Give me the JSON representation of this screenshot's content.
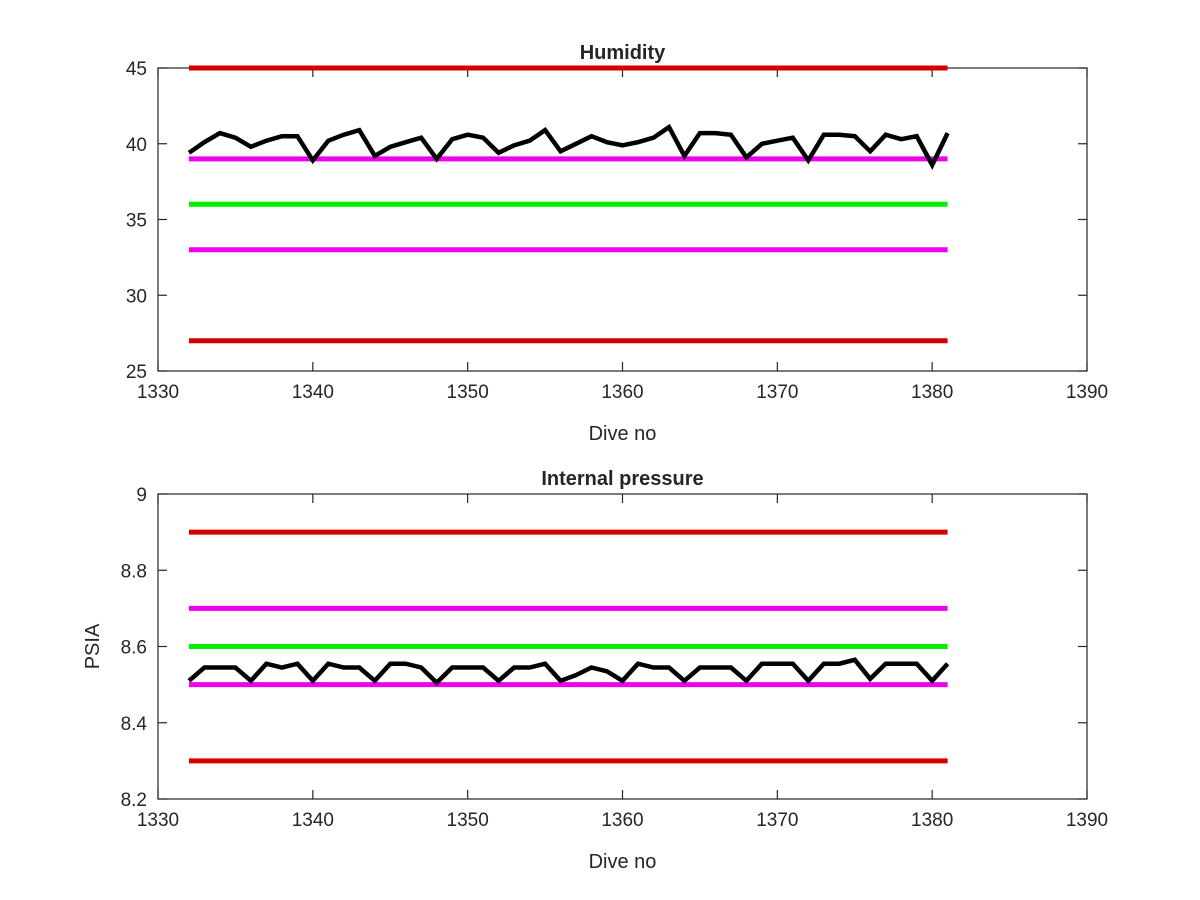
{
  "chart_data": [
    {
      "type": "line",
      "title": "Humidity",
      "xlabel": "Dive no",
      "ylabel": "",
      "xlim": [
        1330,
        1390
      ],
      "ylim": [
        25,
        45
      ],
      "xticks": [
        1330,
        1340,
        1350,
        1360,
        1370,
        1380,
        1390
      ],
      "yticks": [
        25,
        30,
        35,
        40,
        45
      ],
      "xtick_labels": [
        "1330",
        "1340",
        "1350",
        "1360",
        "1370",
        "1380",
        "1390"
      ],
      "ytick_labels": [
        "25",
        "30",
        "35",
        "40",
        "45"
      ],
      "grid": false,
      "legend": "none",
      "series": [
        {
          "color": "#d40000",
          "values_x": [
            1332,
            1381
          ],
          "values_y": [
            45,
            45
          ]
        },
        {
          "color": "#ee00ee",
          "values_x": [
            1332,
            1381
          ],
          "values_y": [
            39,
            39
          ]
        },
        {
          "color": "#00ee00",
          "values_x": [
            1332,
            1381
          ],
          "values_y": [
            36,
            36
          ]
        },
        {
          "color": "#ee00ee",
          "values_x": [
            1332,
            1381
          ],
          "values_y": [
            33,
            33
          ]
        },
        {
          "color": "#d40000",
          "values_x": [
            1332,
            1381
          ],
          "values_y": [
            27,
            27
          ]
        },
        {
          "color": "#000000",
          "values_x": [
            1332,
            1333,
            1334,
            1335,
            1336,
            1337,
            1338,
            1339,
            1340,
            1341,
            1342,
            1343,
            1344,
            1345,
            1346,
            1347,
            1348,
            1349,
            1350,
            1351,
            1352,
            1353,
            1354,
            1355,
            1356,
            1357,
            1358,
            1359,
            1360,
            1361,
            1362,
            1363,
            1364,
            1365,
            1366,
            1367,
            1368,
            1369,
            1370,
            1371,
            1372,
            1373,
            1374,
            1375,
            1376,
            1377,
            1378,
            1379,
            1380,
            1381
          ],
          "values_y": [
            39.4,
            40.1,
            40.7,
            40.4,
            39.8,
            40.2,
            40.5,
            40.5,
            38.9,
            40.2,
            40.6,
            40.9,
            39.2,
            39.8,
            40.1,
            40.4,
            39.0,
            40.3,
            40.6,
            40.4,
            39.4,
            39.9,
            40.2,
            40.9,
            39.5,
            40.0,
            40.5,
            40.1,
            39.9,
            40.1,
            40.4,
            41.1,
            39.2,
            40.7,
            40.7,
            40.6,
            39.1,
            40.0,
            40.2,
            40.4,
            38.9,
            40.6,
            40.6,
            40.5,
            39.5,
            40.6,
            40.3,
            40.5,
            38.6,
            40.7
          ]
        }
      ]
    },
    {
      "type": "line",
      "title": "Internal pressure",
      "xlabel": "Dive no",
      "ylabel": "PSIA",
      "xlim": [
        1330,
        1390
      ],
      "ylim": [
        8.2,
        9.0
      ],
      "xticks": [
        1330,
        1340,
        1350,
        1360,
        1370,
        1380,
        1390
      ],
      "yticks": [
        8.2,
        8.4,
        8.6,
        8.8,
        9.0
      ],
      "xtick_labels": [
        "1330",
        "1340",
        "1350",
        "1360",
        "1370",
        "1380",
        "1390"
      ],
      "ytick_labels": [
        "8.2",
        "8.4",
        "8.6",
        "8.8",
        "9"
      ],
      "grid": false,
      "legend": "none",
      "series": [
        {
          "color": "#d40000",
          "values_x": [
            1332,
            1381
          ],
          "values_y": [
            8.9,
            8.9
          ]
        },
        {
          "color": "#ee00ee",
          "values_x": [
            1332,
            1381
          ],
          "values_y": [
            8.7,
            8.7
          ]
        },
        {
          "color": "#00ee00",
          "values_x": [
            1332,
            1381
          ],
          "values_y": [
            8.6,
            8.6
          ]
        },
        {
          "color": "#ee00ee",
          "values_x": [
            1332,
            1381
          ],
          "values_y": [
            8.5,
            8.5
          ]
        },
        {
          "color": "#d40000",
          "values_x": [
            1332,
            1381
          ],
          "values_y": [
            8.3,
            8.3
          ]
        },
        {
          "color": "#000000",
          "values_x": [
            1332,
            1333,
            1334,
            1335,
            1336,
            1337,
            1338,
            1339,
            1340,
            1341,
            1342,
            1343,
            1344,
            1345,
            1346,
            1347,
            1348,
            1349,
            1350,
            1351,
            1352,
            1353,
            1354,
            1355,
            1356,
            1357,
            1358,
            1359,
            1360,
            1361,
            1362,
            1363,
            1364,
            1365,
            1366,
            1367,
            1368,
            1369,
            1370,
            1371,
            1372,
            1373,
            1374,
            1375,
            1376,
            1377,
            1378,
            1379,
            1380,
            1381
          ],
          "values_y": [
            8.51,
            8.545,
            8.545,
            8.545,
            8.51,
            8.555,
            8.545,
            8.555,
            8.51,
            8.555,
            8.545,
            8.545,
            8.51,
            8.555,
            8.555,
            8.545,
            8.505,
            8.545,
            8.545,
            8.545,
            8.51,
            8.545,
            8.545,
            8.555,
            8.51,
            8.525,
            8.545,
            8.535,
            8.51,
            8.555,
            8.545,
            8.545,
            8.51,
            8.545,
            8.545,
            8.545,
            8.51,
            8.555,
            8.555,
            8.555,
            8.51,
            8.555,
            8.555,
            8.565,
            8.515,
            8.555,
            8.555,
            8.555,
            8.51,
            8.555
          ]
        }
      ]
    }
  ]
}
